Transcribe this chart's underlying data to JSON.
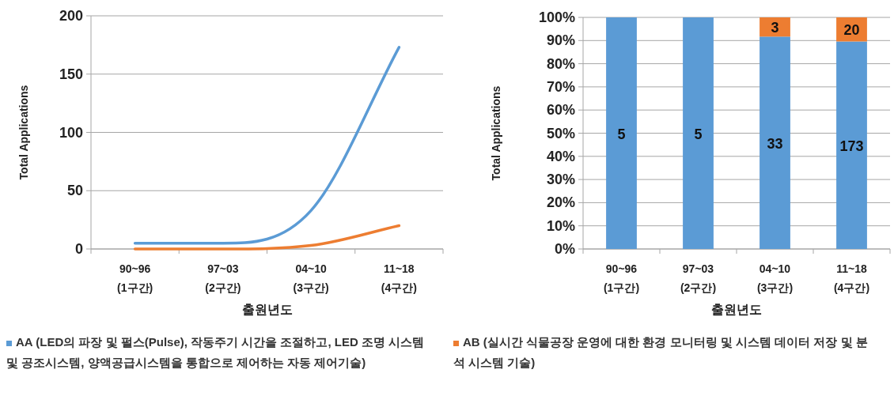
{
  "chart_data": [
    {
      "type": "line",
      "ylabel": "Total  Applications",
      "xlabel": "출원년도",
      "categories": [
        "90~96\n(1구간)",
        "97~03\n(2구간)",
        "04~10\n(3구간)",
        "11~18\n(4구간)"
      ],
      "series": [
        {
          "name": "AA (LED의 파장 및 펄스(Pulse), 작동주기 시간을 조절하고, LED 조명 시스템 및 공조시스템, 양액공급시스템을 통합으로 제어하는 자동 제어기술)",
          "color": "#5b9bd5",
          "values": [
            5,
            5,
            33,
            173
          ]
        },
        {
          "name": "AB (실시간 식물공장 운영에 대한 환경 모니터링 및 시스템 데이터 저장 및 분석 시스템 기술)",
          "color": "#ed7d31",
          "values": [
            0,
            0,
            3,
            20
          ]
        }
      ],
      "ylim": [
        0,
        200
      ],
      "yticks": [
        0,
        50,
        100,
        150,
        200
      ],
      "grid": "y",
      "legend": "bottom"
    },
    {
      "type": "bar",
      "stacked": true,
      "ylabel": "Total  Applications",
      "xlabel": "출원년도",
      "categories": [
        "90~96\n(1구간)",
        "97~03\n(2구간)",
        "04~10\n(3구간)",
        "11~18\n(4구간)"
      ],
      "series": [
        {
          "color": "#5b9bd5",
          "values": [
            100,
            100,
            91.7,
            89.6
          ]
        },
        {
          "color": "#ed7d31",
          "values": [
            0,
            0,
            8.3,
            10.4
          ]
        }
      ],
      "annotations": [
        "5",
        "5",
        "33",
        "173",
        "3",
        "20"
      ],
      "ylim": [
        0,
        100
      ],
      "yticks": [
        {
          "value": 0,
          "label": "0%"
        },
        {
          "value": 10,
          "label": "10%"
        },
        {
          "value": 20,
          "label": "20%"
        },
        {
          "value": 30,
          "label": "30%"
        },
        {
          "value": 40,
          "label": "40%"
        },
        {
          "value": 50,
          "label": "50%"
        },
        {
          "value": 60,
          "label": "60%"
        },
        {
          "value": 70,
          "label": "70%"
        },
        {
          "value": 80,
          "label": "80%"
        },
        {
          "value": 90,
          "label": "90%"
        },
        {
          "value": 100,
          "label": "100%"
        }
      ],
      "grid": "y"
    }
  ]
}
